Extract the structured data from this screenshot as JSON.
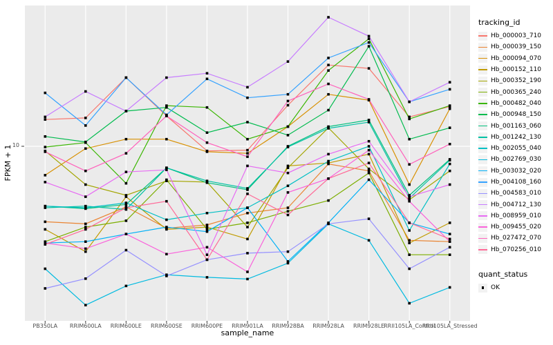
{
  "chart": {
    "y_title": "FPKM + 1",
    "x_title": "sample_name",
    "y_tick_label": "10",
    "panel_bg": "#EBEBEB",
    "grid_color": "#FFFFFF",
    "tick_color": "#333333",
    "axis_text_color": "#4D4D4D",
    "marker_color": "#000000"
  },
  "legend": {
    "tracking_title": "tracking_id",
    "quant_title": "quant_status",
    "quant_items": [
      {
        "label": "OK",
        "marker": "black-square"
      }
    ]
  },
  "chart_data": {
    "type": "line",
    "title": "",
    "xlabel": "sample_name",
    "ylabel": "FPKM + 1",
    "y_scale": "log10",
    "ylim": [
      1,
      65
    ],
    "y_ticks": [
      10
    ],
    "grid": true,
    "legend_position": "right",
    "point_marker": "black-square",
    "categories": [
      "PB350LA",
      "RRIM600LA",
      "RRIM600LE",
      "RRIM600SE",
      "RRIM600PE",
      "RRIM901LA",
      "RRIM928BA",
      "RRIM928LA",
      "RRIM928LE",
      "RRII105LA_Control",
      "RRII105LA_Stressed"
    ],
    "series": [
      {
        "name": "Hb_000003_710",
        "color": "#F8766D",
        "values": [
          14.3,
          14.6,
          25.0,
          15.0,
          9.4,
          9.5,
          17.3,
          29.6,
          28.3,
          14.8,
          17.0
        ]
      },
      {
        "name": "Hb_000039_150",
        "color": "#EA8331",
        "values": [
          3.65,
          3.55,
          4.45,
          3.35,
          3.5,
          4.1,
          4.4,
          7.9,
          7.2,
          2.85,
          2.8
        ]
      },
      {
        "name": "Hb_000094_070",
        "color": "#D89000",
        "values": [
          6.8,
          9.7,
          11.0,
          11.0,
          9.3,
          9.1,
          13.0,
          20.0,
          18.5,
          6.0,
          16.5
        ]
      },
      {
        "name": "Hb_000152_110",
        "color": "#C09B00",
        "values": [
          3.3,
          2.45,
          5.1,
          3.3,
          3.4,
          2.9,
          7.7,
          8.0,
          9.0,
          2.75,
          3.6
        ]
      },
      {
        "name": "Hb_000352_190",
        "color": "#A3A500",
        "values": [
          9.4,
          6.0,
          5.2,
          6.3,
          6.2,
          3.4,
          7.5,
          12.8,
          7.4,
          4.9,
          7.2
        ]
      },
      {
        "name": "Hb_000365_240",
        "color": "#7CAE00",
        "values": [
          2.8,
          3.4,
          3.7,
          6.4,
          3.3,
          3.6,
          4.2,
          4.85,
          7.0,
          2.35,
          2.35
        ]
      },
      {
        "name": "Hb_000482_040",
        "color": "#39B600",
        "values": [
          9.9,
          10.5,
          6.1,
          17.2,
          16.8,
          11.0,
          13.0,
          27.5,
          42.0,
          14.4,
          17.2
        ]
      },
      {
        "name": "Hb_000948_150",
        "color": "#00BB4E",
        "values": [
          11.4,
          10.6,
          16.0,
          16.8,
          12.0,
          13.8,
          11.6,
          16.2,
          38.0,
          11.0,
          12.8
        ]
      },
      {
        "name": "Hb_001163_060",
        "color": "#00BF7D",
        "values": [
          4.5,
          4.35,
          4.6,
          7.5,
          6.15,
          5.6,
          10.0,
          13.0,
          14.2,
          5.2,
          8.4
        ]
      },
      {
        "name": "Hb_001242_130",
        "color": "#00C1A3",
        "values": [
          4.4,
          4.5,
          4.3,
          7.5,
          6.3,
          5.7,
          9.9,
          12.7,
          13.8,
          5.0,
          8.3
        ]
      },
      {
        "name": "Hb_002055_040",
        "color": "#00BFC4",
        "values": [
          4.5,
          4.4,
          4.7,
          3.75,
          4.1,
          4.4,
          5.9,
          8.2,
          10.0,
          3.25,
          7.9
        ]
      },
      {
        "name": "Hb_002769_030",
        "color": "#00BAE0",
        "values": [
          1.95,
          1.2,
          1.55,
          1.8,
          1.74,
          1.7,
          2.1,
          3.55,
          2.85,
          1.23,
          1.52
        ]
      },
      {
        "name": "Hb_003032_020",
        "color": "#00B0F6",
        "values": [
          2.75,
          2.8,
          3.1,
          3.4,
          3.2,
          4.4,
          2.15,
          3.6,
          6.4,
          3.6,
          3.1
        ]
      },
      {
        "name": "Hb_004108_160",
        "color": "#35A2FF",
        "values": [
          20.4,
          13.2,
          25.0,
          15.2,
          24.6,
          19.1,
          20.0,
          32.5,
          40.0,
          18.1,
          21.4
        ]
      },
      {
        "name": "Hb_004583_010",
        "color": "#9590FF",
        "values": [
          1.5,
          1.71,
          2.5,
          1.77,
          2.2,
          2.4,
          2.45,
          3.55,
          3.8,
          1.95,
          2.6
        ]
      },
      {
        "name": "Hb_004712_130",
        "color": "#C77CFF",
        "values": [
          14.8,
          20.8,
          16.0,
          25.0,
          26.5,
          22.0,
          31.0,
          56.0,
          43.5,
          18.1,
          23.5
        ]
      },
      {
        "name": "Hb_008959_010",
        "color": "#E76BF3",
        "values": [
          6.2,
          5.1,
          7.1,
          7.3,
          2.35,
          7.7,
          7.0,
          9.0,
          10.7,
          5.1,
          6.0
        ]
      },
      {
        "name": "Hb_009455_020",
        "color": "#FA62DB",
        "values": [
          2.75,
          2.55,
          3.1,
          2.37,
          2.6,
          1.87,
          5.4,
          6.5,
          9.5,
          4.8,
          2.8
        ]
      },
      {
        "name": "Hb_027472_070",
        "color": "#FF62BC",
        "values": [
          9.3,
          7.2,
          9.1,
          15.0,
          10.5,
          8.7,
          18.3,
          23.0,
          18.7,
          7.85,
          10.3
        ]
      },
      {
        "name": "Hb_070256_010",
        "color": "#FF6A98",
        "values": [
          2.7,
          3.3,
          4.4,
          4.8,
          2.2,
          5.3,
          4.0,
          6.5,
          8.0,
          3.6,
          2.9
        ]
      }
    ]
  }
}
